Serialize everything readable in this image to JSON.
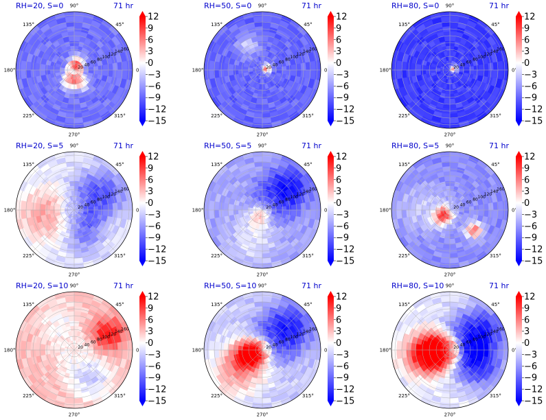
{
  "chart_data": {
    "type": "heatmap",
    "projection": "polar",
    "angle_tick_labels": [
      "0°",
      "45°",
      "90°",
      "135°",
      "180°",
      "225°",
      "270°",
      "315°"
    ],
    "radial_tick_labels": [
      "20",
      "40",
      "60",
      "80",
      "100",
      "120",
      "140",
      "160"
    ],
    "colorbar": {
      "colormap": "bwr",
      "ticks": [
        "12",
        "9",
        "6",
        "3",
        "0",
        "−3",
        "−6",
        "−9",
        "−12",
        "−15"
      ],
      "range": [
        -15,
        12
      ],
      "extend": "both"
    },
    "panels": [
      {
        "title": "RH=20, S=0",
        "time": "71 hr",
        "field": {
          "bias": -0.55,
          "features": [
            {
              "r": 0.07,
              "th": 70,
              "w": 0.12,
              "amp": 1.3
            },
            {
              "r": 0.18,
              "th": 250,
              "w": 0.12,
              "amp": 0.9
            },
            {
              "r": 0.25,
              "th": 300,
              "w": 0.1,
              "amp": 0.7
            }
          ]
        }
      },
      {
        "title": "RH=50, S=0",
        "time": "71 hr",
        "field": {
          "bias": -0.6,
          "features": [
            {
              "r": 0.04,
              "th": 20,
              "w": 0.08,
              "amp": 1.2
            },
            {
              "r": 0.5,
              "th": 120,
              "w": 0.15,
              "amp": 0.4
            }
          ]
        }
      },
      {
        "title": "RH=80, S=0",
        "time": "71 hr",
        "field": {
          "bias": -0.75,
          "features": [
            {
              "r": 0.03,
              "th": 20,
              "w": 0.07,
              "amp": 1.2
            }
          ]
        }
      },
      {
        "title": "RH=20, S=5",
        "time": "71 hr",
        "field": {
          "bias": -0.1,
          "features": [
            {
              "r": 0.55,
              "th": 190,
              "w": 0.35,
              "amp": 0.45
            },
            {
              "r": 0.5,
              "th": 30,
              "w": 0.35,
              "amp": -0.6
            },
            {
              "r": 0.45,
              "th": 290,
              "w": 0.25,
              "amp": -0.4
            }
          ]
        }
      },
      {
        "title": "RH=50, S=5",
        "time": "71 hr",
        "field": {
          "bias": -0.35,
          "features": [
            {
              "r": 0.1,
              "th": 250,
              "w": 0.15,
              "amp": 0.6
            },
            {
              "r": 0.55,
              "th": 40,
              "w": 0.3,
              "amp": -0.6
            },
            {
              "r": 0.55,
              "th": 250,
              "w": 0.3,
              "amp": 0.25
            }
          ]
        }
      },
      {
        "title": "RH=80, S=5",
        "time": "71 hr",
        "field": {
          "bias": -0.45,
          "features": [
            {
              "r": 0.15,
              "th": 220,
              "w": 0.12,
              "amp": 1.1
            },
            {
              "r": 0.55,
              "th": 320,
              "w": 0.1,
              "amp": 1.0
            },
            {
              "r": 0.45,
              "th": 180,
              "w": 0.35,
              "amp": 0.25
            }
          ]
        }
      },
      {
        "title": "RH=20, S=10",
        "time": "71 hr",
        "field": {
          "bias": 0.25,
          "features": [
            {
              "r": 0.65,
              "th": 25,
              "w": 0.2,
              "amp": 0.7
            },
            {
              "r": 0.55,
              "th": 300,
              "w": 0.3,
              "amp": -0.45
            },
            {
              "r": 0.5,
              "th": 120,
              "w": 0.3,
              "amp": -0.25
            }
          ]
        }
      },
      {
        "title": "RH=50, S=10",
        "time": "71 hr",
        "field": {
          "bias": -0.2,
          "features": [
            {
              "r": 0.2,
              "th": 200,
              "w": 0.2,
              "amp": 1.3
            },
            {
              "r": 0.55,
              "th": 220,
              "w": 0.35,
              "amp": 0.6
            },
            {
              "r": 0.55,
              "th": 40,
              "w": 0.35,
              "amp": -0.7
            }
          ]
        }
      },
      {
        "title": "RH=80, S=10",
        "time": "71 hr",
        "field": {
          "bias": -0.1,
          "features": [
            {
              "r": 0.3,
              "th": 190,
              "w": 0.3,
              "amp": 1.6
            },
            {
              "r": 0.6,
              "th": 30,
              "w": 0.35,
              "amp": -0.8
            },
            {
              "r": 0.6,
              "th": 330,
              "w": 0.3,
              "amp": -0.6
            }
          ]
        }
      }
    ]
  }
}
